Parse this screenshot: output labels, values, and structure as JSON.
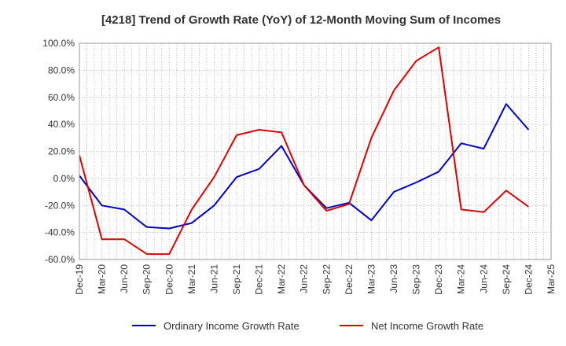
{
  "chart_data": {
    "type": "line",
    "title": "[4218]  Trend of Growth Rate (YoY) of 12-Month Moving Sum of Incomes",
    "xlabel": "",
    "ylabel": "",
    "ylim": [
      -60,
      100
    ],
    "y_ticks": [
      100,
      80,
      60,
      40,
      20,
      0,
      -20,
      -40,
      -60
    ],
    "y_tick_labels": [
      "100.0%",
      "80.0%",
      "60.0%",
      "40.0%",
      "20.0%",
      "0.0%",
      "-20.0%",
      "-40.0%",
      "-60.0%"
    ],
    "x_tick_labels": [
      "Dec-19",
      "Mar-20",
      "Jun-20",
      "Sep-20",
      "Dec-20",
      "Mar-21",
      "Jun-21",
      "Sep-21",
      "Dec-21",
      "Mar-22",
      "Jun-22",
      "Sep-22",
      "Dec-22",
      "Mar-23",
      "Jun-23",
      "Sep-23",
      "Dec-23",
      "Mar-24",
      "Jun-24",
      "Sep-24",
      "Dec-24",
      "Mar-25"
    ],
    "grid": true,
    "legend_position": "bottom",
    "series": [
      {
        "name": "Ordinary Income Growth Rate",
        "color": "#0000cc",
        "points": [
          [
            0,
            2
          ],
          [
            3,
            -20
          ],
          [
            6,
            -23
          ],
          [
            9,
            -36
          ],
          [
            12,
            -37
          ],
          [
            15,
            -33
          ],
          [
            18,
            -20
          ],
          [
            21,
            1
          ],
          [
            24,
            7
          ],
          [
            27,
            24
          ],
          [
            30,
            -5
          ],
          [
            33,
            -22
          ],
          [
            36,
            -18
          ],
          [
            39,
            -31
          ],
          [
            42,
            -10
          ],
          [
            45,
            -3
          ],
          [
            48,
            5
          ],
          [
            51,
            26
          ],
          [
            54,
            22
          ],
          [
            57,
            55
          ],
          [
            60,
            36
          ]
        ]
      },
      {
        "name": "Net Income Growth Rate",
        "color": "#dd0000",
        "points": [
          [
            0,
            17
          ],
          [
            3,
            -45
          ],
          [
            6,
            -45
          ],
          [
            9,
            -56
          ],
          [
            12,
            -56
          ],
          [
            15,
            -23
          ],
          [
            18,
            1
          ],
          [
            21,
            32
          ],
          [
            24,
            36
          ],
          [
            27,
            34
          ],
          [
            30,
            -5
          ],
          [
            33,
            -24
          ],
          [
            36,
            -19
          ],
          [
            39,
            30
          ],
          [
            42,
            65
          ],
          [
            45,
            87
          ],
          [
            48,
            97
          ],
          [
            51,
            -23
          ],
          [
            54,
            -25
          ],
          [
            57,
            -9
          ],
          [
            60,
            -21
          ]
        ]
      }
    ]
  }
}
